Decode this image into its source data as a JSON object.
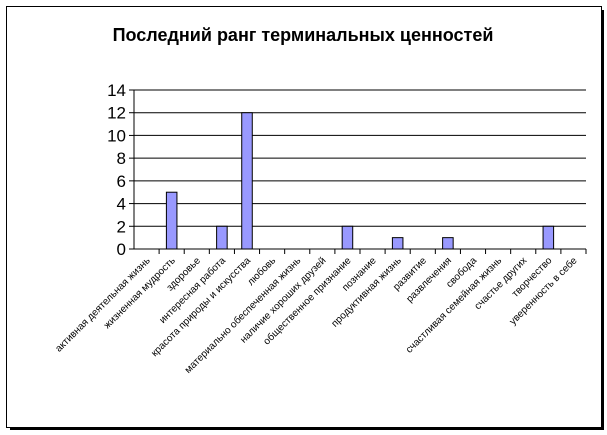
{
  "chart_data": {
    "type": "bar",
    "title": "Последний ранг терминальных ценностей",
    "xlabel": "",
    "ylabel": "",
    "categories": [
      "активная деятельная жизнь",
      "жизненная мудрость",
      "здоровье",
      "интересная работа",
      "красота природы и искусства",
      "любовь",
      "материально обеспеченная жизнь",
      "наличие хороших друзей",
      "общественное признание",
      "познание",
      "продуктивная жизнь",
      "развитие",
      "развлечения",
      "свобода",
      "счастливая семейная жизнь",
      "счастье других",
      "творчество",
      "уверенность в себе"
    ],
    "values": [
      0,
      5,
      0,
      2,
      12,
      0,
      0,
      0,
      2,
      0,
      1,
      0,
      1,
      0,
      0,
      0,
      2,
      0
    ],
    "ylim": [
      0,
      14
    ],
    "yticks": [
      0,
      2,
      4,
      6,
      8,
      10,
      12,
      14
    ],
    "grid": true,
    "legend": "none",
    "colors": {
      "bar_fill": "#9999ff",
      "bar_stroke": "#000000",
      "grid": "#000000"
    }
  }
}
